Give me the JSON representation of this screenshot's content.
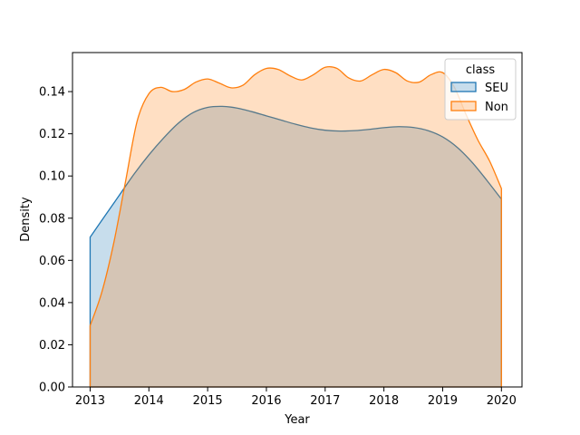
{
  "chart_data": {
    "type": "area",
    "title": "",
    "xlabel": "Year",
    "ylabel": "Density",
    "xlim": [
      2012.7,
      2020.35
    ],
    "ylim": [
      0,
      0.1585
    ],
    "xticks": [
      "2013",
      "2014",
      "2015",
      "2016",
      "2017",
      "2018",
      "2019",
      "2020"
    ],
    "yticks": [
      "0.00",
      "0.02",
      "0.04",
      "0.06",
      "0.08",
      "0.10",
      "0.12",
      "0.14"
    ],
    "legend": {
      "title": "class",
      "position": "top-right"
    },
    "series": [
      {
        "name": "SEU",
        "color": "#1f77b4",
        "x": [
          2013,
          2013.25,
          2013.5,
          2013.75,
          2014,
          2014.25,
          2014.5,
          2014.75,
          2015,
          2015.25,
          2015.5,
          2015.75,
          2016,
          2016.25,
          2016.5,
          2016.75,
          2017,
          2017.25,
          2017.5,
          2017.75,
          2018,
          2018.25,
          2018.5,
          2018.75,
          2019,
          2019.25,
          2019.5,
          2019.75,
          2020
        ],
        "y": [
          0.071,
          0.081,
          0.091,
          0.101,
          0.11,
          0.118,
          0.125,
          0.13,
          0.1325,
          0.133,
          0.1322,
          0.1305,
          0.1285,
          0.1265,
          0.1245,
          0.1228,
          0.1217,
          0.1213,
          0.1215,
          0.1221,
          0.1229,
          0.1234,
          0.123,
          0.1215,
          0.1185,
          0.1135,
          0.1065,
          0.098,
          0.089
        ]
      },
      {
        "name": "Non",
        "color": "#ff7f0e",
        "x": [
          2013,
          2013.2,
          2013.4,
          2013.6,
          2013.8,
          2014,
          2014.2,
          2014.4,
          2014.6,
          2014.8,
          2015,
          2015.2,
          2015.4,
          2015.6,
          2015.8,
          2016,
          2016.2,
          2016.4,
          2016.6,
          2016.8,
          2017,
          2017.2,
          2017.4,
          2017.6,
          2017.8,
          2018,
          2018.2,
          2018.4,
          2018.6,
          2018.8,
          2019,
          2019.2,
          2019.4,
          2019.6,
          2019.8,
          2020
        ],
        "y": [
          0.029,
          0.045,
          0.068,
          0.097,
          0.126,
          0.139,
          0.142,
          0.14,
          0.141,
          0.1445,
          0.146,
          0.144,
          0.1418,
          0.143,
          0.148,
          0.151,
          0.1505,
          0.1475,
          0.1455,
          0.148,
          0.1515,
          0.151,
          0.1465,
          0.145,
          0.148,
          0.1505,
          0.149,
          0.145,
          0.1445,
          0.148,
          0.149,
          0.142,
          0.129,
          0.117,
          0.107,
          0.094
        ]
      }
    ]
  }
}
